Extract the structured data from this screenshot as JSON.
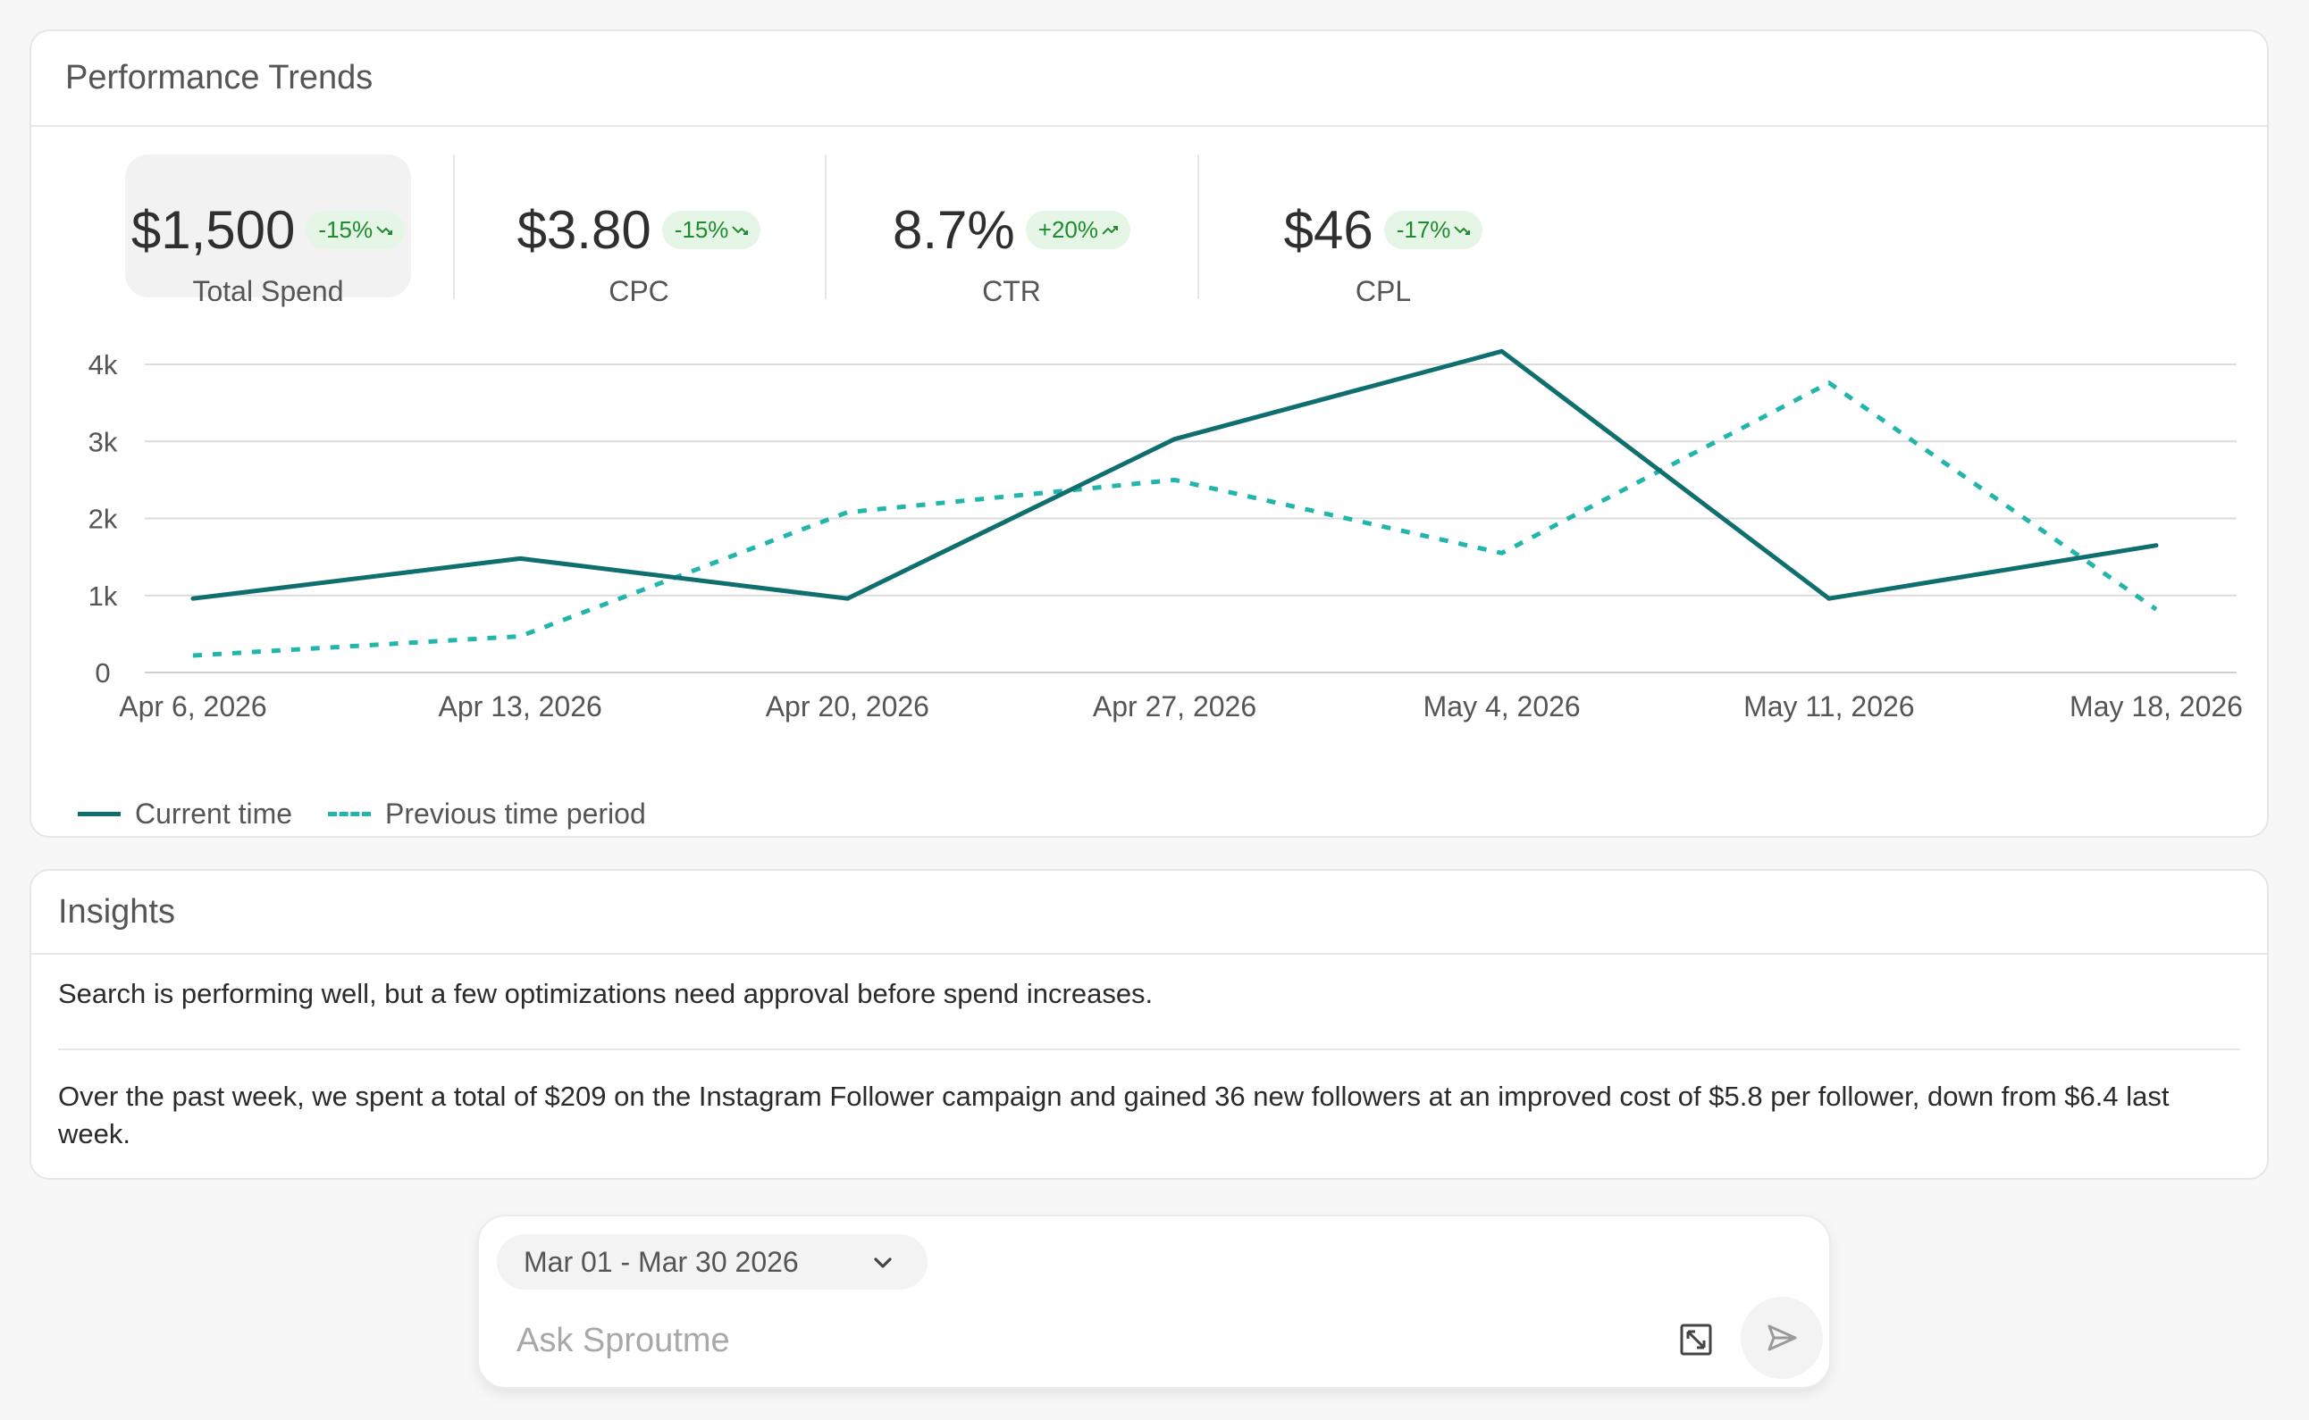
{
  "performance": {
    "title": "Performance Trends",
    "kpis": [
      {
        "value": "$1,500",
        "change": "-15%",
        "direction": "down",
        "label": "Total Spend",
        "selected": true
      },
      {
        "value": "$3.80",
        "change": "-15%",
        "direction": "down",
        "label": "CPC",
        "selected": false
      },
      {
        "value": "8.7%",
        "change": "+20%",
        "direction": "up",
        "label": "CTR",
        "selected": false
      },
      {
        "value": "$46",
        "change": "-17%",
        "direction": "down",
        "label": "CPL",
        "selected": false
      }
    ]
  },
  "chart_data": {
    "type": "line",
    "x": [
      "Apr 6, 2026",
      "Apr 13, 2026",
      "Apr 20, 2026",
      "Apr 27, 2026",
      "May 4, 2026",
      "May 11, 2026",
      "May 18, 2026"
    ],
    "yticks": [
      "0",
      "1k",
      "2k",
      "3k",
      "4k"
    ],
    "ylim": [
      0,
      4000
    ],
    "grid": true,
    "legend_position": "bottom-left",
    "series": [
      {
        "name": "Current time",
        "style": "solid",
        "color": "#0f6e6e",
        "values": [
          960,
          1480,
          960,
          3030,
          4170,
          960,
          1650
        ]
      },
      {
        "name": "Previous time period",
        "style": "dashed",
        "color": "#21b5ac",
        "values": [
          220,
          470,
          2080,
          2500,
          1550,
          3760,
          820
        ]
      }
    ]
  },
  "insights": {
    "title": "Insights",
    "items": [
      "Search is performing well, but a few optimizations need approval before spend increases.",
      "Over the past week, we spent a total of $209 on the Instagram Follower campaign and gained 36 new followers at an improved cost of $5.8 per follower, down from $6.4 last week."
    ]
  },
  "ask": {
    "date_range": "Mar 01 - Mar 30 2026",
    "placeholder": "Ask Sproutme",
    "icons": {
      "dropdown": "chevron-down-icon",
      "expand": "expand-icon",
      "send": "send-icon"
    }
  }
}
